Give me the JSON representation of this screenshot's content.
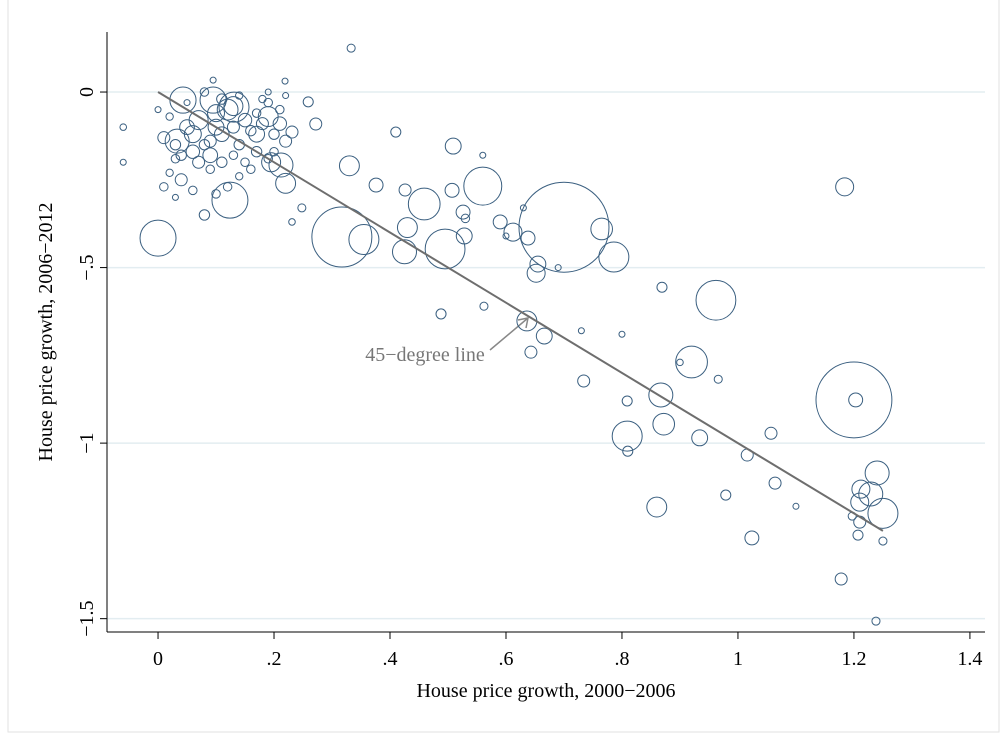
{
  "chart_data": {
    "type": "scatter",
    "xlabel": "House price growth, 2000−2006",
    "ylabel": "House price growth, 2006−2012",
    "annotation": "45−degree line",
    "xlim": [
      -0.088,
      1.426
    ],
    "ylim": [
      -1.538,
      0.171
    ],
    "xticks": [
      0,
      {
        "value": 0.2,
        "label": ".2"
      },
      {
        "value": 0.4,
        "label": ".4"
      },
      {
        "value": 0.6,
        "label": ".6"
      },
      {
        "value": 0.8,
        "label": ".8"
      },
      1,
      1.2,
      1.4
    ],
    "yticks": [
      0,
      {
        "value": -0.5,
        "label": "−.5"
      },
      {
        "value": -1,
        "label": "−1"
      },
      {
        "value": -1.5,
        "label": "−1.5"
      }
    ],
    "grid": true,
    "color": "#3a5f80",
    "line_color": "#6e6e6e",
    "fit_line": {
      "x": [
        0,
        1.25
      ],
      "values": [
        0,
        -1.25
      ]
    },
    "series": [
      {
        "x": [
          0.7,
          0.317,
          0.355,
          1.2,
          1.203,
          0.0,
          0.124,
          0.495,
          0.56,
          0.962,
          0.92,
          0.809,
          0.867,
          0.872,
          0.786,
          1.24,
          1.25,
          1.229,
          1.212,
          1.21,
          0.86,
          0.095,
          0.131,
          0.033,
          0.043,
          0.459,
          0.43,
          0.425,
          0.22,
          0.19,
          0.212,
          0.33,
          0.509,
          0.612,
          0.636,
          0.666,
          0.765,
          0.652,
          1.024,
          1.178,
          1.184,
          1.016,
          0.934,
          1.064,
          1.057,
          1.238,
          1.25,
          1.207,
          1.21,
          0.979,
          1.197,
          0.333,
          0.095,
          0.219,
          -0.06,
          -0.06,
          0.488,
          0.562,
          0.643,
          0.734,
          0.966,
          0.869,
          0.809,
          0.81,
          0.59,
          0.638,
          0.655,
          0.507,
          0.526,
          0.528,
          0.426,
          0.376,
          0.41,
          0.231,
          0.259,
          0.272,
          0.248,
          0.231,
          0.01,
          0.03,
          0.02,
          0.05,
          0.06,
          0.07,
          0.08,
          0.09,
          0.1,
          0.11,
          0.12,
          0.13,
          0.14,
          0.15,
          0.16,
          0.17,
          0.18,
          0.19,
          0.2,
          0.21,
          0.22,
          0.21,
          0.04,
          0.06,
          0.08,
          0.1,
          0.03,
          0.0,
          0.02,
          0.05,
          0.07,
          0.09,
          0.11,
          0.13,
          0.15,
          0.17,
          0.19,
          0.12,
          0.14,
          0.16,
          0.18,
          0.19,
          0.14,
          0.08,
          0.11,
          0.2,
          0.22,
          0.03,
          0.01,
          0.06,
          0.1,
          0.04,
          0.17,
          0.195,
          0.09,
          0.13,
          1.1,
          0.9,
          0.8,
          0.73,
          0.69,
          0.63,
          0.6,
          0.56,
          0.53
        ],
        "values": [
          -0.385,
          -0.413,
          -0.42,
          -0.877,
          -0.877,
          -0.416,
          -0.308,
          -0.447,
          -0.268,
          -0.593,
          -0.769,
          -0.98,
          -0.863,
          -0.946,
          -0.47,
          -1.085,
          -1.2,
          -1.145,
          -1.131,
          -1.168,
          -1.182,
          -0.023,
          -0.043,
          -0.14,
          -0.023,
          -0.319,
          -0.386,
          -0.455,
          -0.26,
          -0.07,
          -0.208,
          -0.21,
          -0.154,
          -0.399,
          -0.652,
          -0.695,
          -0.39,
          -0.516,
          -1.27,
          -1.387,
          -0.27,
          -1.034,
          -0.985,
          -1.114,
          -0.972,
          -1.507,
          -1.279,
          -1.262,
          -1.225,
          -1.148,
          -1.208,
          0.125,
          0.034,
          0.031,
          -0.1,
          -0.2,
          -0.632,
          -0.61,
          -0.741,
          -0.823,
          -0.818,
          -0.556,
          -0.88,
          -1.023,
          -0.37,
          -0.416,
          -0.49,
          -0.28,
          -0.342,
          -0.41,
          -0.279,
          -0.265,
          -0.114,
          -0.114,
          -0.028,
          -0.091,
          -0.33,
          -0.37,
          -0.13,
          -0.19,
          -0.23,
          -0.1,
          -0.17,
          -0.08,
          -0.15,
          -0.22,
          -0.06,
          -0.12,
          -0.05,
          -0.1,
          -0.15,
          -0.08,
          -0.11,
          -0.06,
          -0.09,
          -0.03,
          -0.12,
          -0.09,
          -0.14,
          -0.05,
          -0.25,
          -0.28,
          -0.35,
          -0.29,
          -0.3,
          -0.05,
          -0.07,
          -0.03,
          -0.2,
          -0.18,
          -0.2,
          -0.18,
          -0.2,
          -0.17,
          -0.19,
          -0.27,
          -0.24,
          -0.22,
          -0.02,
          0.0,
          -0.01,
          0.0,
          -0.02,
          -0.17,
          -0.01,
          -0.15,
          -0.27,
          -0.12,
          -0.1,
          -0.18,
          -0.12,
          -0.2,
          -0.14,
          -0.04,
          -1.18,
          -0.77,
          -0.69,
          -0.68,
          -0.5,
          -0.33,
          -0.41,
          -0.18,
          -0.36
        ],
        "sizes": [
          225,
          100,
          25,
          160,
          5.4,
          36,
          36,
          44,
          40,
          44,
          28,
          25,
          16,
          13,
          25,
          16,
          25,
          16,
          9,
          9,
          11,
          19,
          25,
          16,
          19,
          28,
          11,
          16,
          11,
          11,
          16,
          11,
          7,
          9,
          11,
          7,
          13,
          9,
          5.4,
          4,
          9,
          4,
          7,
          4,
          4,
          1.8,
          1.8,
          2.8,
          4,
          2.8,
          1.8,
          1.8,
          1,
          1,
          1.2,
          1,
          2.8,
          1.8,
          4,
          4,
          1.8,
          2.8,
          2.8,
          2.8,
          5.4,
          5.4,
          7,
          5.4,
          5.4,
          7,
          4,
          5.4,
          2.8,
          4,
          2.8,
          4,
          1.8,
          1.2,
          4,
          2,
          1.5,
          6,
          5,
          10,
          3,
          2,
          8,
          6,
          12,
          4,
          3,
          5,
          3,
          2,
          4,
          2,
          3,
          5,
          4,
          2,
          4,
          2,
          3,
          2,
          1,
          1,
          1.5,
          1,
          4,
          6,
          3,
          2,
          2,
          3,
          2,
          2,
          1.5,
          2,
          1.5,
          1,
          1.5,
          2,
          3,
          2,
          1,
          3,
          2,
          8,
          7,
          3,
          7,
          10,
          4,
          10,
          1,
          1.2,
          1,
          1,
          1,
          1,
          1,
          1,
          2
        ]
      }
    ]
  }
}
